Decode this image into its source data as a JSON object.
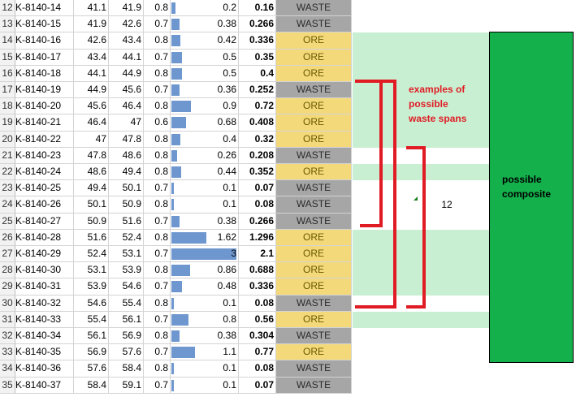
{
  "rows": [
    {
      "n": "12",
      "id": "K-8140-14",
      "from": "41.1",
      "to": "41.9",
      "len": "0.8",
      "value": "0.2",
      "product": "0.16",
      "status": "WASTE"
    },
    {
      "n": "13",
      "id": "K-8140-15",
      "from": "41.9",
      "to": "42.6",
      "len": "0.7",
      "value": "0.38",
      "product": "0.266",
      "status": "WASTE"
    },
    {
      "n": "14",
      "id": "K-8140-16",
      "from": "42.6",
      "to": "43.4",
      "len": "0.8",
      "value": "0.42",
      "product": "0.336",
      "status": "ORE"
    },
    {
      "n": "15",
      "id": "K-8140-17",
      "from": "43.4",
      "to": "44.1",
      "len": "0.7",
      "value": "0.5",
      "product": "0.35",
      "status": "ORE"
    },
    {
      "n": "16",
      "id": "K-8140-18",
      "from": "44.1",
      "to": "44.9",
      "len": "0.8",
      "value": "0.5",
      "product": "0.4",
      "status": "ORE"
    },
    {
      "n": "17",
      "id": "K-8140-19",
      "from": "44.9",
      "to": "45.6",
      "len": "0.7",
      "value": "0.36",
      "product": "0.252",
      "status": "WASTE"
    },
    {
      "n": "18",
      "id": "K-8140-20",
      "from": "45.6",
      "to": "46.4",
      "len": "0.8",
      "value": "0.9",
      "product": "0.72",
      "status": "ORE"
    },
    {
      "n": "19",
      "id": "K-8140-21",
      "from": "46.4",
      "to": "47",
      "len": "0.6",
      "value": "0.68",
      "product": "0.408",
      "status": "ORE"
    },
    {
      "n": "20",
      "id": "K-8140-22",
      "from": "47",
      "to": "47.8",
      "len": "0.8",
      "value": "0.4",
      "product": "0.32",
      "status": "ORE"
    },
    {
      "n": "21",
      "id": "K-8140-23",
      "from": "47.8",
      "to": "48.6",
      "len": "0.8",
      "value": "0.26",
      "product": "0.208",
      "status": "WASTE"
    },
    {
      "n": "22",
      "id": "K-8140-24",
      "from": "48.6",
      "to": "49.4",
      "len": "0.8",
      "value": "0.44",
      "product": "0.352",
      "status": "ORE"
    },
    {
      "n": "23",
      "id": "K-8140-25",
      "from": "49.4",
      "to": "50.1",
      "len": "0.7",
      "value": "0.1",
      "product": "0.07",
      "status": "WASTE"
    },
    {
      "n": "24",
      "id": "K-8140-26",
      "from": "50.1",
      "to": "50.9",
      "len": "0.8",
      "value": "0.1",
      "product": "0.08",
      "status": "WASTE"
    },
    {
      "n": "25",
      "id": "K-8140-27",
      "from": "50.9",
      "to": "51.6",
      "len": "0.7",
      "value": "0.38",
      "product": "0.266",
      "status": "WASTE"
    },
    {
      "n": "26",
      "id": "K-8140-28",
      "from": "51.6",
      "to": "52.4",
      "len": "0.8",
      "value": "1.62",
      "product": "1.296",
      "status": "ORE"
    },
    {
      "n": "27",
      "id": "K-8140-29",
      "from": "52.4",
      "to": "53.1",
      "len": "0.7",
      "value": "3",
      "product": "2.1",
      "status": "ORE"
    },
    {
      "n": "28",
      "id": "K-8140-30",
      "from": "53.1",
      "to": "53.9",
      "len": "0.8",
      "value": "0.86",
      "product": "0.688",
      "status": "ORE"
    },
    {
      "n": "29",
      "id": "K-8140-31",
      "from": "53.9",
      "to": "54.6",
      "len": "0.7",
      "value": "0.48",
      "product": "0.336",
      "status": "ORE"
    },
    {
      "n": "30",
      "id": "K-8140-32",
      "from": "54.6",
      "to": "55.4",
      "len": "0.8",
      "value": "0.1",
      "product": "0.08",
      "status": "WASTE"
    },
    {
      "n": "31",
      "id": "K-8140-33",
      "from": "55.4",
      "to": "56.1",
      "len": "0.7",
      "value": "0.8",
      "product": "0.56",
      "status": "ORE"
    },
    {
      "n": "32",
      "id": "K-8140-34",
      "from": "56.1",
      "to": "56.9",
      "len": "0.8",
      "value": "0.38",
      "product": "0.304",
      "status": "WASTE"
    },
    {
      "n": "33",
      "id": "K-8140-35",
      "from": "56.9",
      "to": "57.6",
      "len": "0.7",
      "value": "1.1",
      "product": "0.77",
      "status": "ORE"
    },
    {
      "n": "34",
      "id": "K-8140-36",
      "from": "57.6",
      "to": "58.4",
      "len": "0.8",
      "value": "0.1",
      "product": "0.08",
      "status": "WASTE"
    },
    {
      "n": "35",
      "id": "K-8140-37",
      "from": "58.4",
      "to": "59.1",
      "len": "0.7",
      "value": "0.1",
      "product": "0.07",
      "status": "WASTE"
    }
  ],
  "bar_max_value": 3,
  "annotation": {
    "line1": "examples of",
    "line2": "possible",
    "line3": "waste spans"
  },
  "composite": {
    "line1": "possible",
    "line2": "composite"
  },
  "free_cell_value": "12",
  "colors": {
    "ore": "#f3d97a",
    "waste": "#a6a6a6",
    "bar": "#6e97cf",
    "highlight": "#c9efd2",
    "composite": "#14b04c",
    "bracket": "#e01b24"
  }
}
